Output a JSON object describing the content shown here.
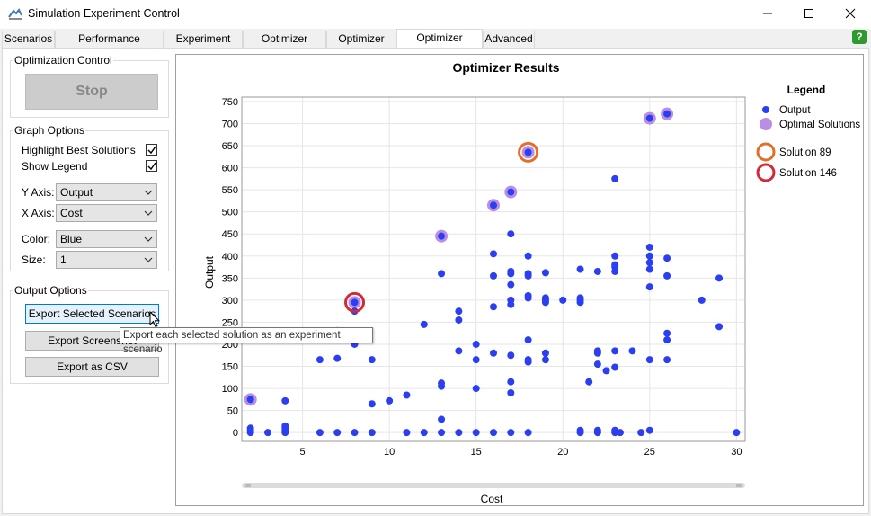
{
  "window": {
    "title": "Simulation Experiment Control"
  },
  "tabs": [
    {
      "label": "Scenarios",
      "active": false
    },
    {
      "label": "Performance Measures",
      "active": false
    },
    {
      "label": "Experiment Run",
      "active": false
    },
    {
      "label": "Optimizer Design",
      "active": false
    },
    {
      "label": "Optimizer Run",
      "active": false
    },
    {
      "label": "Optimizer Results",
      "active": true
    },
    {
      "label": "Advanced",
      "active": false
    }
  ],
  "optimization_control": {
    "label": "Optimization Control",
    "stop_label": "Stop"
  },
  "graph_options": {
    "label": "Graph Options",
    "highlight_best_label": "Highlight Best Solutions",
    "highlight_best_checked": true,
    "show_legend_label": "Show Legend",
    "show_legend_checked": true,
    "y_axis_label": "Y Axis:",
    "y_axis_value": "Output",
    "x_axis_label": "X Axis:",
    "x_axis_value": "Cost",
    "color_label": "Color:",
    "color_value": "Blue",
    "size_label": "Size:",
    "size_value": "1"
  },
  "output_options": {
    "label": "Output Options",
    "export_selected_label": "Export Selected Scenarios",
    "export_screenshot_label": "Export Screenshot",
    "export_csv_label": "Export as CSV"
  },
  "tooltip": {
    "text": "Export each selected solution as an experiment scenario"
  },
  "colors": {
    "output_point": "#2b3ff0",
    "optimal_point": "#b98ee3",
    "solution_89": "#e0702a",
    "solution_146": "#d42a36",
    "help_green": "#2c9a2c"
  },
  "chart_data": {
    "type": "scatter",
    "title": "Optimizer Results",
    "xlabel": "Cost",
    "ylabel": "Output",
    "xlim": [
      1.5,
      30.5
    ],
    "ylim": [
      -20,
      760
    ],
    "xticks": [
      5,
      10,
      15,
      20,
      25,
      30
    ],
    "yticks": [
      0,
      50,
      100,
      150,
      200,
      250,
      300,
      350,
      400,
      450,
      500,
      550,
      600,
      650,
      700,
      750
    ],
    "grid": true,
    "legend": {
      "title": "Legend",
      "placement": "right",
      "entries": [
        "Output",
        "Optimal Solutions",
        "Solution 89",
        "Solution 146"
      ]
    },
    "series": [
      {
        "name": "Output",
        "points": [
          [
            2,
            0
          ],
          [
            2,
            5
          ],
          [
            2,
            10
          ],
          [
            2,
            75
          ],
          [
            3,
            0
          ],
          [
            4,
            0
          ],
          [
            4,
            5
          ],
          [
            4,
            10
          ],
          [
            4,
            15
          ],
          [
            4,
            72
          ],
          [
            6,
            0
          ],
          [
            6,
            165
          ],
          [
            7,
            0
          ],
          [
            7,
            168
          ],
          [
            7,
            225
          ],
          [
            8,
            0
          ],
          [
            8,
            200
          ],
          [
            8,
            275
          ],
          [
            8,
            295
          ],
          [
            9,
            0
          ],
          [
            9,
            65
          ],
          [
            9,
            165
          ],
          [
            10,
            72
          ],
          [
            11,
            0
          ],
          [
            11,
            85
          ],
          [
            12,
            0
          ],
          [
            12,
            245
          ],
          [
            13,
            0
          ],
          [
            13,
            30
          ],
          [
            13,
            105
          ],
          [
            13,
            112
          ],
          [
            13,
            360
          ],
          [
            13,
            445
          ],
          [
            14,
            0
          ],
          [
            14,
            185
          ],
          [
            14,
            255
          ],
          [
            14,
            275
          ],
          [
            15,
            0
          ],
          [
            15,
            100
          ],
          [
            15,
            165
          ],
          [
            15,
            200
          ],
          [
            16,
            0
          ],
          [
            16,
            180
          ],
          [
            16,
            285
          ],
          [
            16,
            355
          ],
          [
            16,
            405
          ],
          [
            16,
            515
          ],
          [
            17,
            0
          ],
          [
            17,
            90
          ],
          [
            17,
            115
          ],
          [
            17,
            175
          ],
          [
            17,
            290
          ],
          [
            17,
            300
          ],
          [
            17,
            335
          ],
          [
            17,
            360
          ],
          [
            17,
            365
          ],
          [
            17,
            450
          ],
          [
            17,
            545
          ],
          [
            18,
            0
          ],
          [
            18,
            160
          ],
          [
            18,
            165
          ],
          [
            18,
            210
          ],
          [
            18,
            305
          ],
          [
            18,
            310
          ],
          [
            18,
            355
          ],
          [
            18,
            360
          ],
          [
            18,
            400
          ],
          [
            18,
            635
          ],
          [
            19,
            165
          ],
          [
            19,
            180
          ],
          [
            19,
            295
          ],
          [
            19,
            300
          ],
          [
            19,
            305
          ],
          [
            19,
            362
          ],
          [
            20,
            300
          ],
          [
            21,
            0
          ],
          [
            21,
            5
          ],
          [
            21,
            295
          ],
          [
            21,
            300
          ],
          [
            21,
            305
          ],
          [
            21,
            370
          ],
          [
            21.5,
            115
          ],
          [
            22,
            0
          ],
          [
            22,
            5
          ],
          [
            22,
            155
          ],
          [
            22,
            180
          ],
          [
            22,
            185
          ],
          [
            22,
            365
          ],
          [
            22.5,
            140
          ],
          [
            23,
            0
          ],
          [
            23,
            5
          ],
          [
            23,
            148
          ],
          [
            23,
            185
          ],
          [
            23,
            365
          ],
          [
            23,
            375
          ],
          [
            23,
            380
          ],
          [
            23,
            400
          ],
          [
            23,
            575
          ],
          [
            23.3,
            0
          ],
          [
            24,
            185
          ],
          [
            24.5,
            0
          ],
          [
            25,
            5
          ],
          [
            25,
            165
          ],
          [
            25,
            330
          ],
          [
            25,
            370
          ],
          [
            25,
            385
          ],
          [
            25,
            400
          ],
          [
            25,
            420
          ],
          [
            25,
            712
          ],
          [
            26,
            165
          ],
          [
            26,
            210
          ],
          [
            26,
            225
          ],
          [
            26,
            355
          ],
          [
            26,
            395
          ],
          [
            26,
            722
          ],
          [
            28,
            300
          ],
          [
            29,
            240
          ],
          [
            29,
            350
          ],
          [
            30,
            0
          ]
        ]
      },
      {
        "name": "Optimal Solutions",
        "points": [
          [
            2,
            75
          ],
          [
            7,
            225
          ],
          [
            8,
            295
          ],
          [
            13,
            445
          ],
          [
            16,
            515
          ],
          [
            17,
            545
          ],
          [
            18,
            635
          ],
          [
            25,
            712
          ],
          [
            26,
            722
          ]
        ]
      },
      {
        "name": "Solution 89",
        "points": [
          [
            18,
            635
          ]
        ]
      },
      {
        "name": "Solution 146",
        "points": [
          [
            8,
            295
          ]
        ]
      }
    ]
  }
}
